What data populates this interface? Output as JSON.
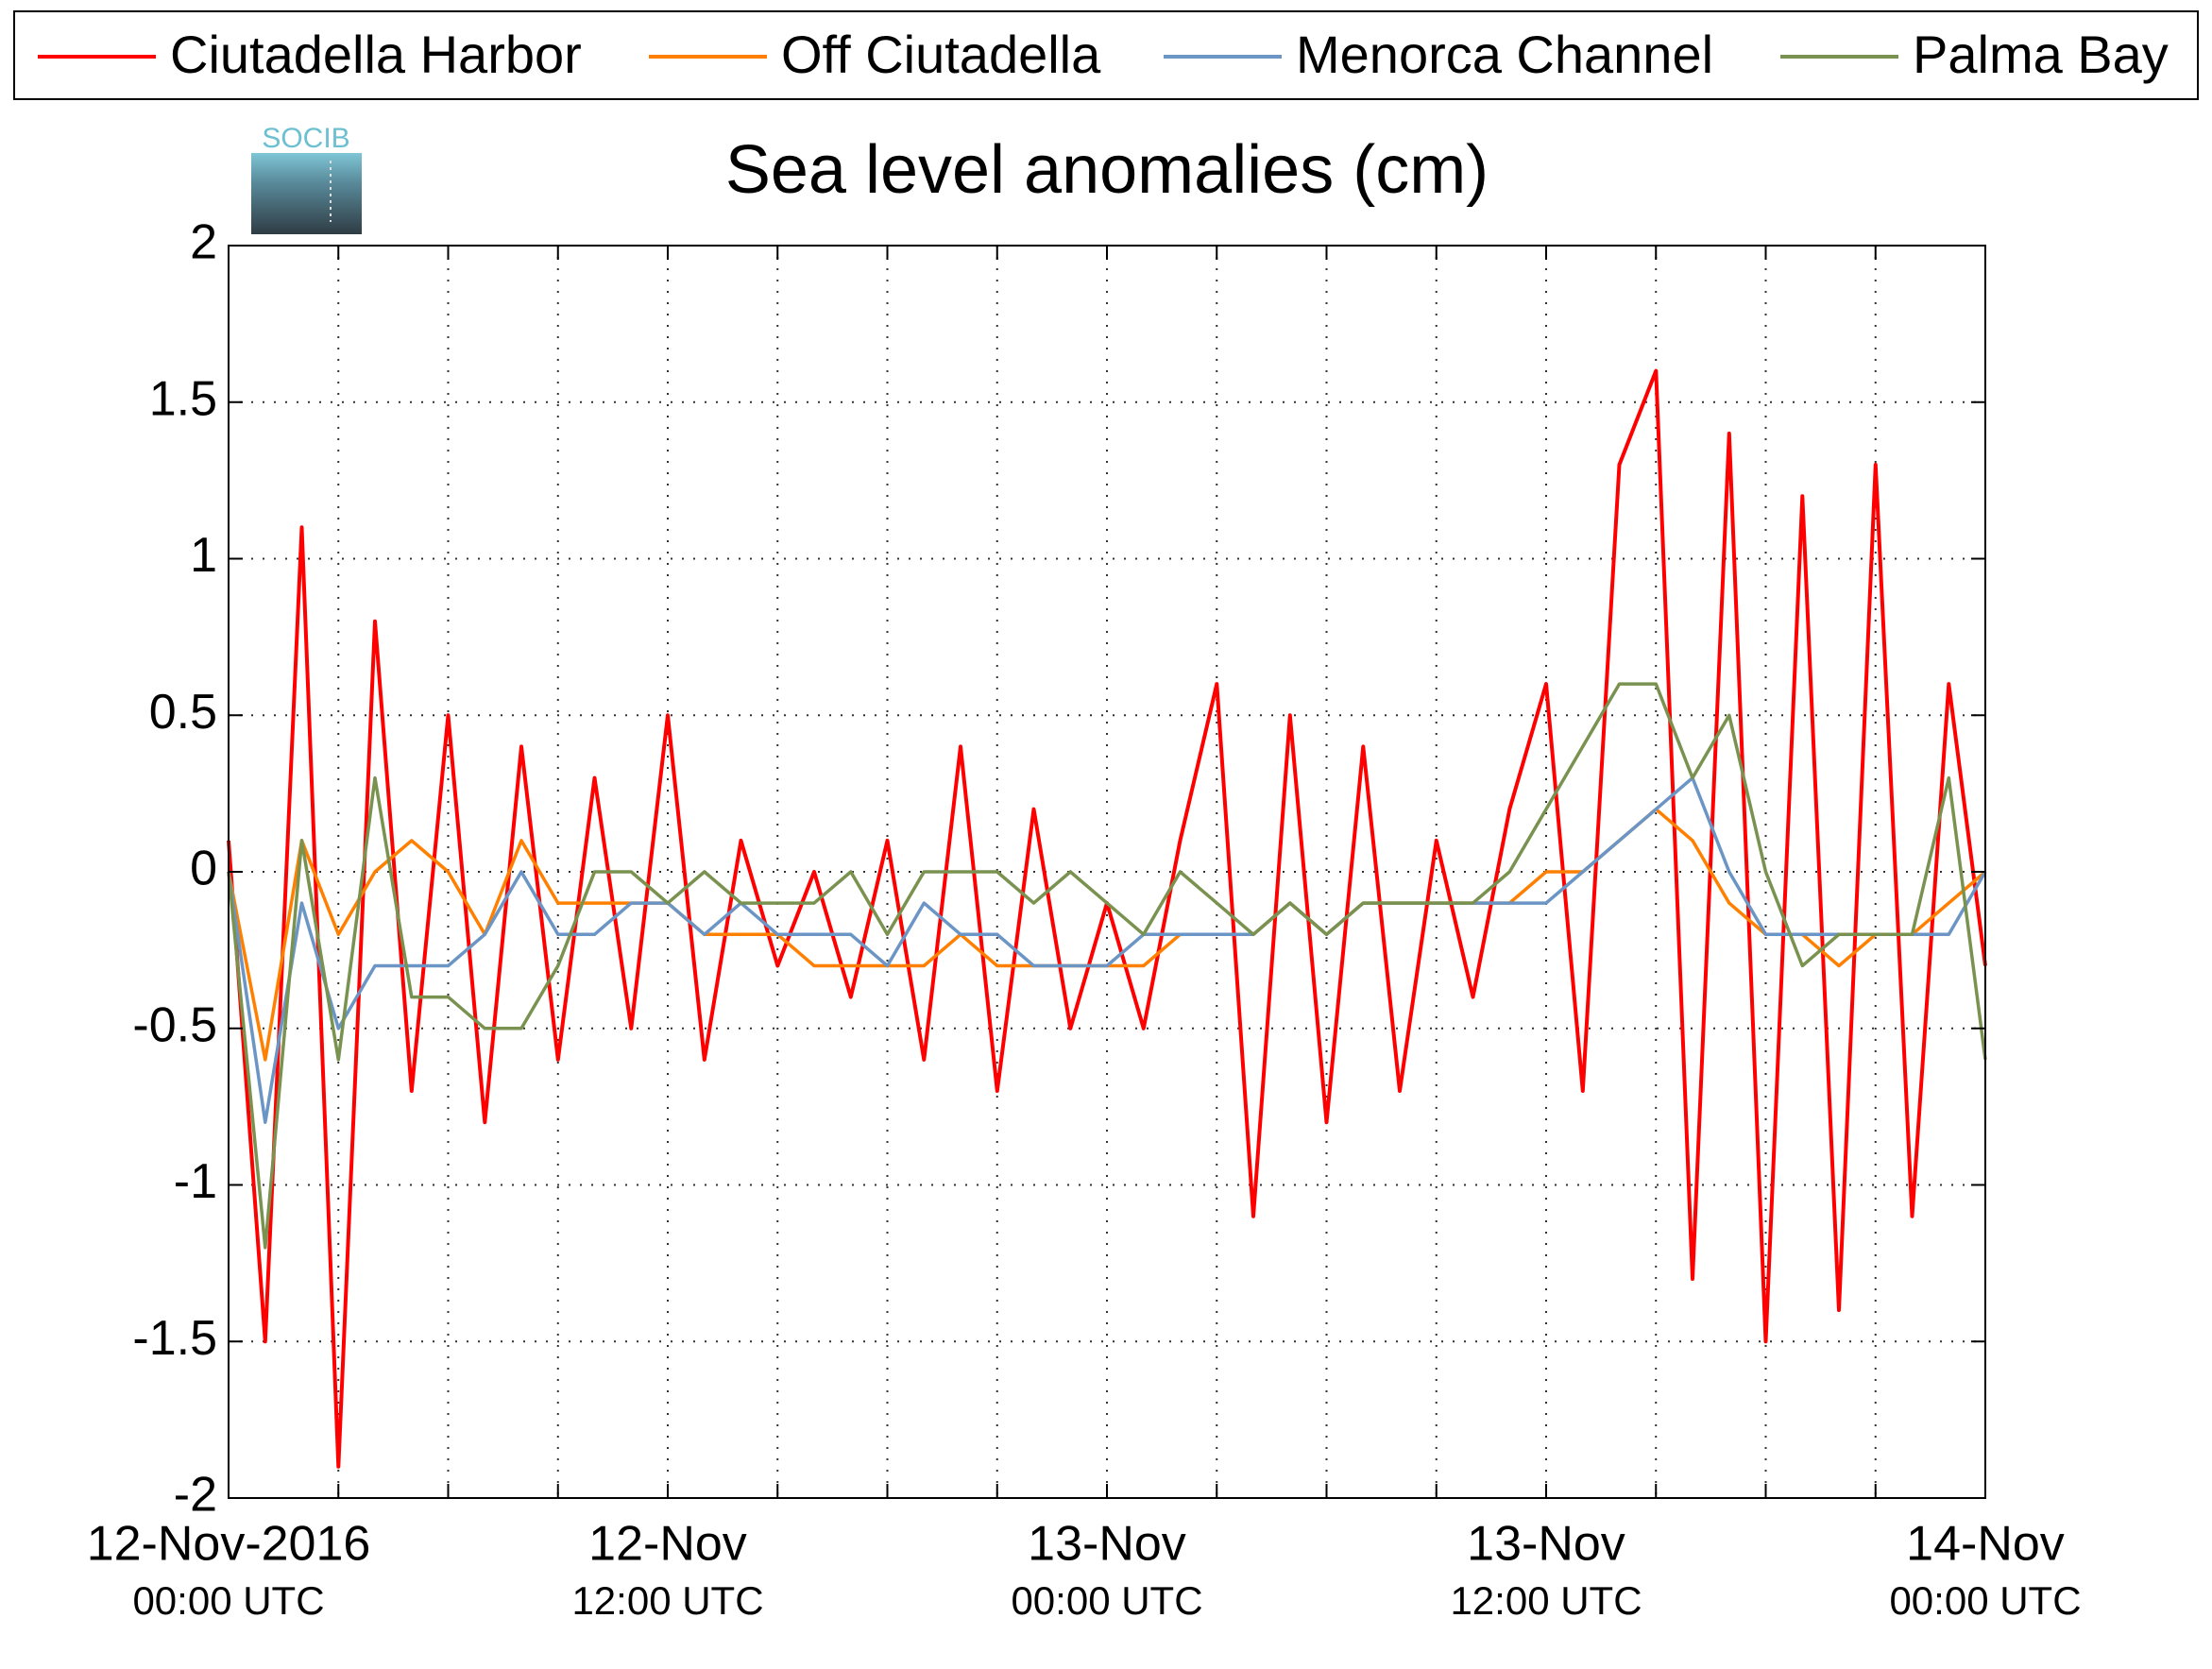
{
  "chart_data": {
    "type": "line",
    "title": "Sea level anomalies (cm)",
    "logo_text": "SOCIB",
    "xlim": [
      "2016-11-12T00:00:00Z",
      "2016-11-14T00:00:00Z"
    ],
    "ylim": [
      -2,
      2
    ],
    "yticks": [
      -2,
      -1.5,
      -1,
      -0.5,
      0,
      0.5,
      1,
      1.5,
      2
    ],
    "xticks": [
      {
        "value": "2016-11-12T00:00:00Z",
        "label": "12-Nov-2016",
        "sublabel": "00:00 UTC"
      },
      {
        "value": "2016-11-12T03:00:00Z",
        "label": null
      },
      {
        "value": "2016-11-12T06:00:00Z",
        "label": null
      },
      {
        "value": "2016-11-12T09:00:00Z",
        "label": null
      },
      {
        "value": "2016-11-12T12:00:00Z",
        "label": "12-Nov",
        "sublabel": "12:00 UTC"
      },
      {
        "value": "2016-11-12T15:00:00Z",
        "label": null
      },
      {
        "value": "2016-11-12T18:00:00Z",
        "label": null
      },
      {
        "value": "2016-11-12T21:00:00Z",
        "label": null
      },
      {
        "value": "2016-11-13T00:00:00Z",
        "label": "13-Nov",
        "sublabel": "00:00 UTC"
      },
      {
        "value": "2016-11-13T03:00:00Z",
        "label": null
      },
      {
        "value": "2016-11-13T06:00:00Z",
        "label": null
      },
      {
        "value": "2016-11-13T09:00:00Z",
        "label": null
      },
      {
        "value": "2016-11-13T12:00:00Z",
        "label": "13-Nov",
        "sublabel": "12:00 UTC"
      },
      {
        "value": "2016-11-13T15:00:00Z",
        "label": null
      },
      {
        "value": "2016-11-13T18:00:00Z",
        "label": null
      },
      {
        "value": "2016-11-13T21:00:00Z",
        "label": null
      },
      {
        "value": "2016-11-14T00:00:00Z",
        "label": "14-Nov",
        "sublabel": "00:00 UTC"
      }
    ],
    "grid": true,
    "legend": "top",
    "x": [
      "2016-11-12T00:00:00Z",
      "2016-11-12T01:00:00Z",
      "2016-11-12T02:00:00Z",
      "2016-11-12T03:00:00Z",
      "2016-11-12T04:00:00Z",
      "2016-11-12T05:00:00Z",
      "2016-11-12T06:00:00Z",
      "2016-11-12T07:00:00Z",
      "2016-11-12T08:00:00Z",
      "2016-11-12T09:00:00Z",
      "2016-11-12T10:00:00Z",
      "2016-11-12T11:00:00Z",
      "2016-11-12T12:00:00Z",
      "2016-11-12T13:00:00Z",
      "2016-11-12T14:00:00Z",
      "2016-11-12T15:00:00Z",
      "2016-11-12T16:00:00Z",
      "2016-11-12T17:00:00Z",
      "2016-11-12T18:00:00Z",
      "2016-11-12T19:00:00Z",
      "2016-11-12T20:00:00Z",
      "2016-11-12T21:00:00Z",
      "2016-11-12T22:00:00Z",
      "2016-11-12T23:00:00Z",
      "2016-11-13T00:00:00Z",
      "2016-11-13T01:00:00Z",
      "2016-11-13T02:00:00Z",
      "2016-11-13T03:00:00Z",
      "2016-11-13T04:00:00Z",
      "2016-11-13T05:00:00Z",
      "2016-11-13T06:00:00Z",
      "2016-11-13T07:00:00Z",
      "2016-11-13T08:00:00Z",
      "2016-11-13T09:00:00Z",
      "2016-11-13T10:00:00Z",
      "2016-11-13T11:00:00Z",
      "2016-11-13T12:00:00Z",
      "2016-11-13T13:00:00Z",
      "2016-11-13T14:00:00Z",
      "2016-11-13T15:00:00Z",
      "2016-11-13T16:00:00Z",
      "2016-11-13T17:00:00Z",
      "2016-11-13T18:00:00Z",
      "2016-11-13T19:00:00Z",
      "2016-11-13T20:00:00Z",
      "2016-11-13T21:00:00Z",
      "2016-11-13T22:00:00Z",
      "2016-11-13T23:00:00Z",
      "2016-11-14T00:00:00Z"
    ],
    "series": [
      {
        "name": "Ciutadella Harbor",
        "color": "#ff0000",
        "values": [
          0.1,
          -1.5,
          1.1,
          -1.9,
          0.8,
          -0.7,
          0.5,
          -0.8,
          0.4,
          -0.6,
          0.3,
          -0.5,
          0.5,
          -0.6,
          0.1,
          -0.3,
          0.0,
          -0.4,
          0.1,
          -0.6,
          0.4,
          -0.7,
          0.2,
          -0.5,
          -0.1,
          -0.5,
          0.1,
          0.6,
          -1.1,
          0.5,
          -0.8,
          0.4,
          -0.7,
          0.1,
          -0.4,
          0.2,
          0.6,
          -0.7,
          1.3,
          1.6,
          -1.3,
          1.4,
          -1.5,
          1.2,
          -1.4,
          1.3,
          -1.1,
          0.6,
          -0.3
        ]
      },
      {
        "name": "Off Ciutadella",
        "color": "#ff8000",
        "values": [
          0.0,
          -0.6,
          0.1,
          -0.2,
          0.0,
          0.1,
          0.0,
          -0.2,
          0.1,
          -0.1,
          -0.1,
          -0.1,
          -0.1,
          -0.2,
          -0.2,
          -0.2,
          -0.3,
          -0.3,
          -0.3,
          -0.3,
          -0.2,
          -0.3,
          -0.3,
          -0.3,
          -0.3,
          -0.3,
          -0.2,
          -0.2,
          -0.2,
          -0.1,
          -0.2,
          -0.1,
          -0.1,
          -0.1,
          -0.1,
          -0.1,
          0.0,
          0.0,
          0.1,
          0.2,
          0.1,
          -0.1,
          -0.2,
          -0.2,
          -0.3,
          -0.2,
          -0.2,
          -0.1,
          0.0
        ]
      },
      {
        "name": "Menorca Channel",
        "color": "#6b95c4",
        "values": [
          0.0,
          -0.8,
          -0.1,
          -0.5,
          -0.3,
          -0.3,
          -0.3,
          -0.2,
          0.0,
          -0.2,
          -0.2,
          -0.1,
          -0.1,
          -0.2,
          -0.1,
          -0.2,
          -0.2,
          -0.2,
          -0.3,
          -0.1,
          -0.2,
          -0.2,
          -0.3,
          -0.3,
          -0.3,
          -0.2,
          -0.2,
          -0.2,
          -0.2,
          -0.1,
          -0.2,
          -0.1,
          -0.1,
          -0.1,
          -0.1,
          -0.1,
          -0.1,
          0.0,
          0.1,
          0.2,
          0.3,
          0.0,
          -0.2,
          -0.2,
          -0.2,
          -0.2,
          -0.2,
          -0.2,
          0.0
        ]
      },
      {
        "name": "Palma Bay",
        "color": "#7a9250",
        "values": [
          0.0,
          -1.2,
          0.1,
          -0.6,
          0.3,
          -0.4,
          -0.4,
          -0.5,
          -0.5,
          -0.3,
          0.0,
          0.0,
          -0.1,
          0.0,
          -0.1,
          -0.1,
          -0.1,
          0.0,
          -0.2,
          0.0,
          0.0,
          0.0,
          -0.1,
          0.0,
          -0.1,
          -0.2,
          0.0,
          -0.1,
          -0.2,
          -0.1,
          -0.2,
          -0.1,
          -0.1,
          -0.1,
          -0.1,
          0.0,
          0.2,
          0.4,
          0.6,
          0.6,
          0.3,
          0.5,
          0.0,
          -0.3,
          -0.2,
          -0.2,
          -0.2,
          0.3,
          -0.6
        ]
      }
    ]
  }
}
